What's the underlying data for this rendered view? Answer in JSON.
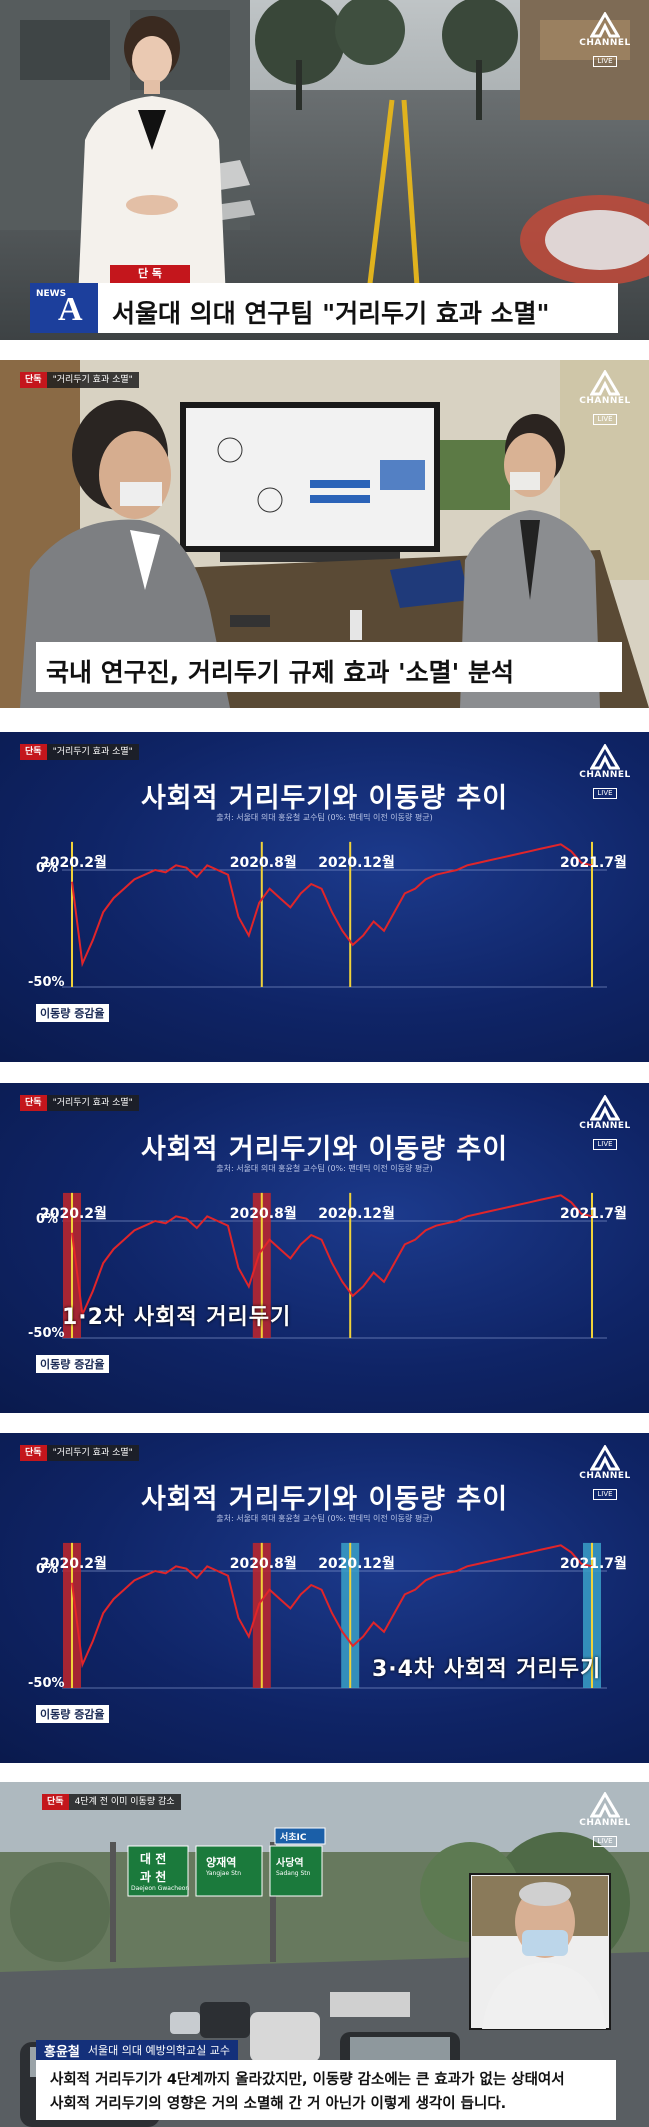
{
  "channel": {
    "name": "CHANNEL",
    "live": "LIVE",
    "brand_color": "#c4161c"
  },
  "frame1": {
    "tag": "단 독",
    "news_logo_small": "NEWS",
    "news_logo_big": "A",
    "headline": "서울대 의대 연구팀 \"거리두기 효과 소멸\""
  },
  "frame2": {
    "tag_red": "단독",
    "tag_text": "\"거리두기 효과 소멸\"",
    "subtitle": "국내 연구진, 거리두기 규제 효과 '소멸' 분석"
  },
  "chart_frames": [
    {
      "tag_red": "단독",
      "tag_text": "\"거리두기 효과 소멸\"",
      "phase_label": ""
    },
    {
      "tag_red": "단독",
      "tag_text": "\"거리두기 효과 소멸\"",
      "phase_label": "1·2차 사회적 거리두기"
    },
    {
      "tag_red": "단독",
      "tag_text": "\"거리두기 효과 소멸\"",
      "phase_label": "3·4차 사회적 거리두기"
    }
  ],
  "chart_data": {
    "type": "line",
    "title": "사회적 거리두기와 이동량 추이",
    "source": "출처: 서울대 의대 홍윤철 교수팀 (0%: 팬데믹 이전 이동량 평균)",
    "ylabel": "이동량 증감율",
    "ylim": [
      -50,
      15
    ],
    "y_ticks": [
      "0%",
      "-50%"
    ],
    "markers": [
      "2020.2월",
      "2020.8월",
      "2020.12월",
      "2021.7월"
    ],
    "series": [
      {
        "name": "이동량 증감율",
        "color": "#e0252a",
        "x": [
          0,
          2,
          4,
          6,
          8,
          10,
          12,
          14,
          16,
          18,
          20,
          22,
          24,
          26,
          28,
          30,
          32,
          34,
          36,
          38,
          40,
          42,
          44,
          46,
          48,
          50,
          52,
          54,
          56,
          58,
          60,
          62,
          64,
          66,
          68,
          70,
          72,
          74,
          76,
          78,
          80,
          82,
          84,
          86,
          88,
          90,
          92,
          94,
          96,
          98,
          100
        ],
        "values": [
          -5,
          -40,
          -30,
          -18,
          -12,
          -8,
          -4,
          -2,
          0,
          -1,
          2,
          1,
          -3,
          2,
          0,
          -2,
          -20,
          -28,
          -14,
          -8,
          -12,
          -16,
          -10,
          -6,
          -8,
          -18,
          -26,
          -32,
          -28,
          -22,
          -26,
          -18,
          -10,
          -8,
          -4,
          -2,
          -1,
          0,
          2,
          3,
          4,
          5,
          6,
          7,
          8,
          9,
          10,
          11,
          8,
          3,
          2
        ]
      }
    ],
    "highlight_periods": {
      "frame2_red": [
        "2020.2월",
        "2020.8월"
      ],
      "frame3_red": [
        "2020.2월",
        "2020.8월"
      ],
      "frame3_cyan": [
        "2020.12월",
        "2021.7월"
      ]
    }
  },
  "frame6": {
    "tag_red": "단독",
    "tag_text": "4단계 전 이미 이동량 감소",
    "sign_top": "서초IC",
    "sign_left_1": "대 전",
    "sign_left_2": "과 천",
    "sign_left_en": "Daejeon  Gwacheon",
    "sign_mid": "양재역",
    "sign_mid_en": "Yangjae Stn",
    "sign_right": "사당역",
    "sign_right_en": "Sadang Stn",
    "speaker_name": "홍윤철",
    "speaker_title": "서울대 의대 예방의학교실 교수",
    "quote_line1": "사회적 거리두기가 4단계까지 올라갔지만, 이동량 감소에는 큰 효과가 없는 상태여서",
    "quote_line2": "사회적 거리두기의 영향은 거의 소멸해 간 거 아닌가 이렇게 생각이 듭니다."
  }
}
